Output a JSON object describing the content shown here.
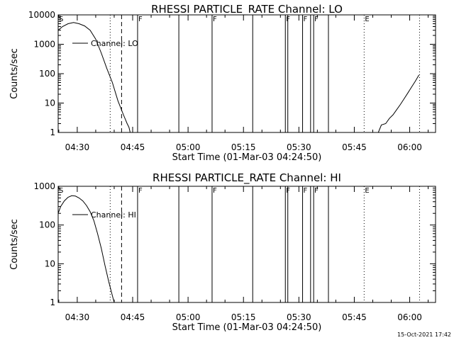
{
  "chart_data": [
    {
      "type": "line",
      "title": "RHESSI PARTICLE_RATE Channel: LO",
      "xlabel": "Start Time (01-Mar-03 04:24:50)",
      "ylabel": "Counts/sec",
      "yscale": "log",
      "ylim": [
        1,
        10000
      ],
      "ytick_labels": [
        "1",
        "10",
        "100",
        "1000",
        "10000"
      ],
      "xlim": [
        "04:24:50",
        "06:07:00"
      ],
      "xtick_labels": [
        "04:30",
        "04:45",
        "05:00",
        "05:15",
        "05:30",
        "05:45",
        "06:00"
      ],
      "legend": "Channel: LO",
      "legend_position": "upper-left",
      "series": [
        {
          "name": "Channel: LO",
          "points": [
            [
              "04:24:50",
              3000
            ],
            [
              "04:26:00",
              4000
            ],
            [
              "04:27:30",
              5000
            ],
            [
              "04:29:00",
              5500
            ],
            [
              "04:30:30",
              5000
            ],
            [
              "04:32:00",
              4200
            ],
            [
              "04:33:30",
              3000
            ],
            [
              "04:35:00",
              1500
            ],
            [
              "04:36:30",
              500
            ],
            [
              "04:38:00",
              150
            ],
            [
              "04:39:30",
              50
            ],
            [
              "04:41:00",
              12
            ],
            [
              "04:42:30",
              4
            ],
            [
              "04:43:30",
              2
            ],
            [
              "04:44:00",
              1.5
            ],
            [
              "04:44:20",
              1
            ]
          ]
        },
        {
          "name": "Channel: LO",
          "points": [
            [
              "05:51:30",
              1
            ],
            [
              "05:52:20",
              1.8
            ],
            [
              "05:53:30",
              2
            ],
            [
              "05:54:30",
              3
            ],
            [
              "05:55:30",
              4
            ],
            [
              "05:56:30",
              6
            ],
            [
              "05:57:30",
              9
            ],
            [
              "05:58:30",
              14
            ],
            [
              "05:59:30",
              22
            ],
            [
              "06:00:30",
              35
            ],
            [
              "06:01:30",
              55
            ],
            [
              "06:02:30",
              90
            ]
          ]
        }
      ],
      "markers": [
        {
          "label": "S",
          "time": "04:24:50",
          "style": "solid"
        },
        {
          "label": "",
          "time": "04:38:55",
          "style": "dotted"
        },
        {
          "label": "",
          "time": "04:42:00",
          "style": "dashed"
        },
        {
          "label": "F",
          "time": "04:46:20",
          "style": "solid"
        },
        {
          "label": "",
          "time": "04:57:30",
          "style": "solid"
        },
        {
          "label": "F",
          "time": "05:06:30",
          "style": "solid"
        },
        {
          "label": "",
          "time": "05:17:30",
          "style": "solid"
        },
        {
          "label": "F",
          "time": "05:26:20",
          "style": "solid"
        },
        {
          "label": "",
          "time": "05:27:00",
          "style": "solid"
        },
        {
          "label": "F",
          "time": "05:31:00",
          "style": "solid"
        },
        {
          "label": "",
          "time": "05:33:10",
          "style": "solid"
        },
        {
          "label": "F",
          "time": "05:34:00",
          "style": "solid"
        },
        {
          "label": "",
          "time": "05:38:00",
          "style": "solid"
        },
        {
          "label": "E",
          "time": "05:47:40",
          "style": "dotted"
        },
        {
          "label": "",
          "time": "06:02:40",
          "style": "dotted"
        }
      ]
    },
    {
      "type": "line",
      "title": "RHESSI PARTICLE_RATE Channel: HI",
      "xlabel": "Start Time (01-Mar-03 04:24:50)",
      "ylabel": "Counts/sec",
      "yscale": "log",
      "ylim": [
        1,
        1000
      ],
      "ytick_labels": [
        "1",
        "10",
        "100",
        "1000"
      ],
      "xlim": [
        "04:24:50",
        "06:07:00"
      ],
      "xtick_labels": [
        "04:30",
        "04:45",
        "05:00",
        "05:15",
        "05:30",
        "05:45",
        "06:00"
      ],
      "legend": "Channel: HI",
      "legend_position": "upper-left",
      "series": [
        {
          "name": "Channel: HI",
          "points": [
            [
              "04:24:50",
              200
            ],
            [
              "04:25:30",
              300
            ],
            [
              "04:26:30",
              420
            ],
            [
              "04:27:30",
              520
            ],
            [
              "04:28:30",
              570
            ],
            [
              "04:29:30",
              560
            ],
            [
              "04:30:30",
              500
            ],
            [
              "04:31:30",
              420
            ],
            [
              "04:32:30",
              320
            ],
            [
              "04:33:30",
              220
            ],
            [
              "04:34:30",
              130
            ],
            [
              "04:35:30",
              60
            ],
            [
              "04:36:30",
              25
            ],
            [
              "04:37:30",
              9
            ],
            [
              "04:38:30",
              3.5
            ],
            [
              "04:39:30",
              1.5
            ],
            [
              "04:40:00",
              1
            ]
          ]
        }
      ],
      "markers": [
        {
          "label": "S",
          "time": "04:24:50",
          "style": "solid"
        },
        {
          "label": "",
          "time": "04:38:55",
          "style": "dotted"
        },
        {
          "label": "",
          "time": "04:42:00",
          "style": "dashed"
        },
        {
          "label": "F",
          "time": "04:46:20",
          "style": "solid"
        },
        {
          "label": "",
          "time": "04:57:30",
          "style": "solid"
        },
        {
          "label": "F",
          "time": "05:06:30",
          "style": "solid"
        },
        {
          "label": "",
          "time": "05:17:30",
          "style": "solid"
        },
        {
          "label": "F",
          "time": "05:26:20",
          "style": "solid"
        },
        {
          "label": "",
          "time": "05:27:00",
          "style": "solid"
        },
        {
          "label": "F",
          "time": "05:31:00",
          "style": "solid"
        },
        {
          "label": "",
          "time": "05:33:10",
          "style": "solid"
        },
        {
          "label": "F",
          "time": "05:34:00",
          "style": "solid"
        },
        {
          "label": "",
          "time": "05:38:00",
          "style": "solid"
        },
        {
          "label": "E",
          "time": "05:47:40",
          "style": "dotted"
        },
        {
          "label": "",
          "time": "06:02:40",
          "style": "dotted"
        }
      ]
    }
  ],
  "timestamp": "15-Oct-2021 17:42"
}
